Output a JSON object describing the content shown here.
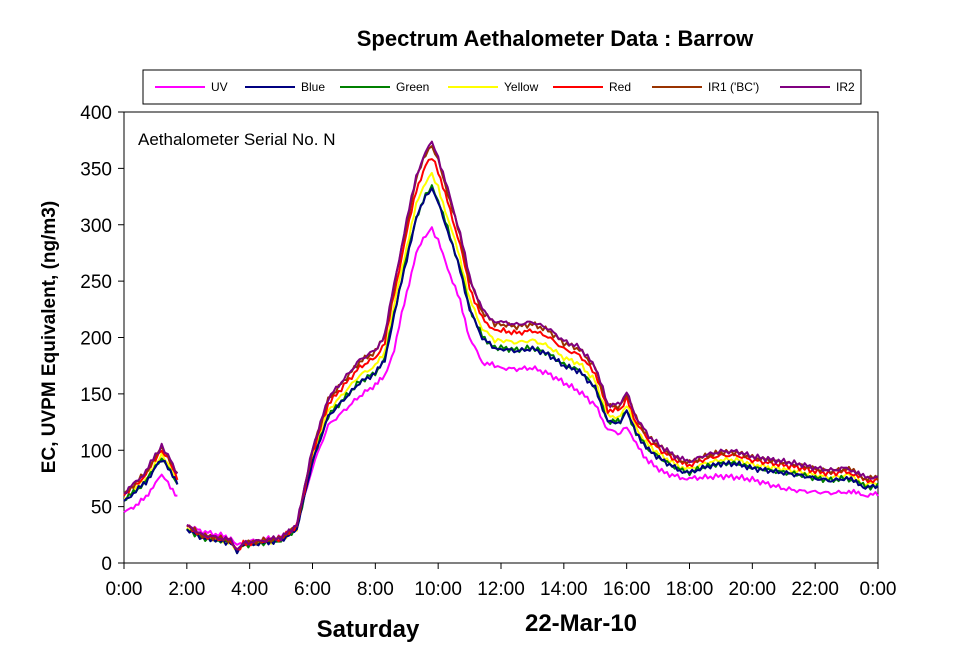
{
  "chart_data": {
    "type": "line",
    "title": "Spectrum Aethalometer Data  :  Barrow",
    "annotation": "Aethalometer  Serial No. N",
    "ylabel": "EC, UVPM Equivalent, (ng/m3)",
    "x_day_label": "Saturday",
    "x_date_label": "22-Mar-10",
    "ylim": [
      0,
      400
    ],
    "y_ticks": [
      "0",
      "50",
      "100",
      "150",
      "200",
      "250",
      "300",
      "350",
      "400"
    ],
    "xlim": [
      "0:00",
      "24:00"
    ],
    "x_ticks": [
      "0:00",
      "2:00",
      "4:00",
      "6:00",
      "8:00",
      "10:00",
      "12:00",
      "14:00",
      "16:00",
      "18:00",
      "20:00",
      "22:00",
      "0:00"
    ],
    "grid": false,
    "legend_position": "top",
    "series": [
      {
        "name": "UV",
        "color": "#ff00ff"
      },
      {
        "name": "Blue",
        "color": "#000080"
      },
      {
        "name": "Green",
        "color": "#008000"
      },
      {
        "name": "Yellow",
        "color": "#ffff00"
      },
      {
        "name": "Red",
        "color": "#ff0000"
      },
      {
        "name": "IR1 ('BC')",
        "color": "#993300"
      },
      {
        "name": "IR2",
        "color": "#800080"
      }
    ],
    "base_curve": {
      "description_time_hours": [
        0,
        0.3,
        0.7,
        1.0,
        1.2,
        1.4,
        1.7,
        1.72,
        2.0,
        2.5,
        3.0,
        3.4,
        3.6,
        3.8,
        4.2,
        5.0,
        5.5,
        6.0,
        6.5,
        7.0,
        7.5,
        8.0,
        8.3,
        8.6,
        9.0,
        9.3,
        9.6,
        9.8,
        10.0,
        10.3,
        10.7,
        11.0,
        11.4,
        11.8,
        12.0,
        12.5,
        13.0,
        13.5,
        14.0,
        14.5,
        15.0,
        15.4,
        15.8,
        16.0,
        16.3,
        16.7,
        17.2,
        17.7,
        18.0,
        18.5,
        19.0,
        19.5,
        20.0,
        20.5,
        21.0,
        21.5,
        22.0,
        22.5,
        23.0,
        23.3,
        23.6,
        24.0
      ],
      "blue_values": [
        55,
        62,
        72,
        85,
        92,
        85,
        70,
        null,
        30,
        22,
        20,
        18,
        10,
        16,
        17,
        20,
        30,
        90,
        130,
        145,
        160,
        168,
        180,
        220,
        270,
        305,
        325,
        332,
        320,
        295,
        260,
        225,
        200,
        190,
        190,
        188,
        190,
        185,
        175,
        170,
        155,
        125,
        125,
        135,
        115,
        100,
        90,
        82,
        80,
        85,
        88,
        88,
        84,
        82,
        80,
        78,
        75,
        73,
        75,
        72,
        67,
        68
      ],
      "uv_values": [
        45,
        50,
        58,
        72,
        78,
        72,
        58,
        null,
        33,
        28,
        25,
        22,
        16,
        18,
        20,
        23,
        32,
        85,
        122,
        135,
        148,
        158,
        165,
        190,
        240,
        275,
        290,
        297,
        285,
        262,
        232,
        200,
        178,
        175,
        173,
        172,
        173,
        168,
        160,
        152,
        140,
        118,
        115,
        122,
        105,
        90,
        80,
        76,
        75,
        76,
        77,
        76,
        74,
        70,
        66,
        64,
        63,
        62,
        63,
        62,
        60,
        61
      ]
    },
    "series_offsets": {
      "Blue": 1.0,
      "Green": 1.005,
      "Yellow": 1.04,
      "Red": 1.085,
      "IR1 ('BC')": 1.115,
      "IR2": 1.125
    }
  }
}
